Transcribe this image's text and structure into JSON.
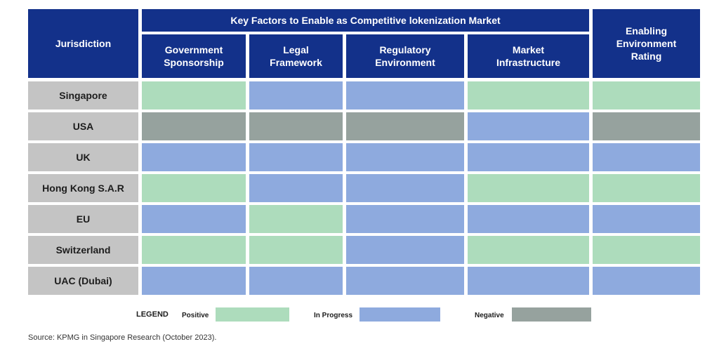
{
  "chart_data": {
    "type": "table",
    "title": "Key Factors to Enable as Competitive lokenization Market",
    "row_header": "Jurisdiction",
    "columns": [
      "Government Sponsorship",
      "Legal Framework",
      "Regulatory Environment",
      "Market Infrastructure"
    ],
    "rating_header": "Enabling Environment Rating",
    "rows": [
      {
        "jurisdiction": "Singapore",
        "values": [
          "positive",
          "in_progress",
          "in_progress",
          "positive",
          "positive"
        ]
      },
      {
        "jurisdiction": "USA",
        "values": [
          "negative",
          "negative",
          "negative",
          "in_progress",
          "negative"
        ]
      },
      {
        "jurisdiction": "UK",
        "values": [
          "in_progress",
          "in_progress",
          "in_progress",
          "in_progress",
          "in_progress"
        ]
      },
      {
        "jurisdiction": "Hong Kong S.A.R",
        "values": [
          "positive",
          "in_progress",
          "in_progress",
          "positive",
          "positive"
        ]
      },
      {
        "jurisdiction": "EU",
        "values": [
          "in_progress",
          "positive",
          "in_progress",
          "in_progress",
          "in_progress"
        ]
      },
      {
        "jurisdiction": "Switzerland",
        "values": [
          "positive",
          "positive",
          "in_progress",
          "positive",
          "positive"
        ]
      },
      {
        "jurisdiction": "UAC (Dubai)",
        "values": [
          "in_progress",
          "in_progress",
          "in_progress",
          "in_progress",
          "in_progress"
        ]
      }
    ],
    "legend": {
      "title": "LEGEND",
      "items": [
        {
          "key": "positive",
          "label": "Positive",
          "color": "#addcbc"
        },
        {
          "key": "in_progress",
          "label": "In Progress",
          "color": "#8eaade"
        },
        {
          "key": "negative",
          "label": "Negative",
          "color": "#96a29e"
        }
      ]
    }
  },
  "colors": {
    "header": "#13318a",
    "header_text": "#ffffff",
    "jurisdiction_cell": "#c4c4c4"
  },
  "source": "Source: KPMG in Singapore Research (October 2023)."
}
